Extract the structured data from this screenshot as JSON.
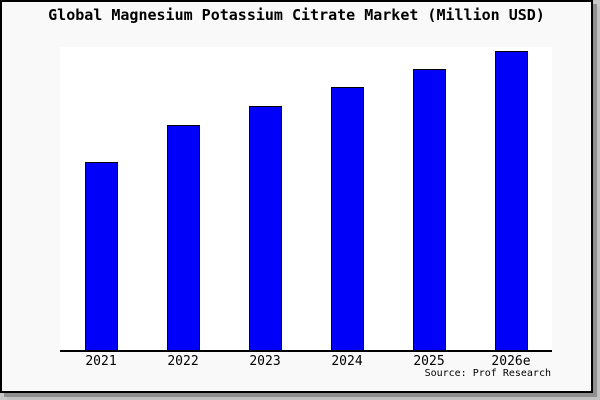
{
  "figure": {
    "background": "#f9f9f9",
    "border_color": "#000000",
    "shadow_color": "#8f8f8f"
  },
  "chart_data": {
    "type": "bar",
    "title": "Global Magnesium Potassium Citrate Market (Million USD)",
    "categories": [
      "2021",
      "2022",
      "2023",
      "2024",
      "2025",
      "2026e"
    ],
    "values": [
      62,
      74.3,
      80.5,
      86.8,
      92.7,
      98.7
    ],
    "xlabel": "",
    "ylabel": "",
    "ylim": [
      0,
      100
    ],
    "y_axis_ticks_visible": false,
    "grid": false,
    "legend": false,
    "plot_background": "#ffffff",
    "bar_color": "#0000fa",
    "bar_border_color": "#000000",
    "axis_line_color": "#000000"
  },
  "source": {
    "label": "Source: Prof Research"
  }
}
